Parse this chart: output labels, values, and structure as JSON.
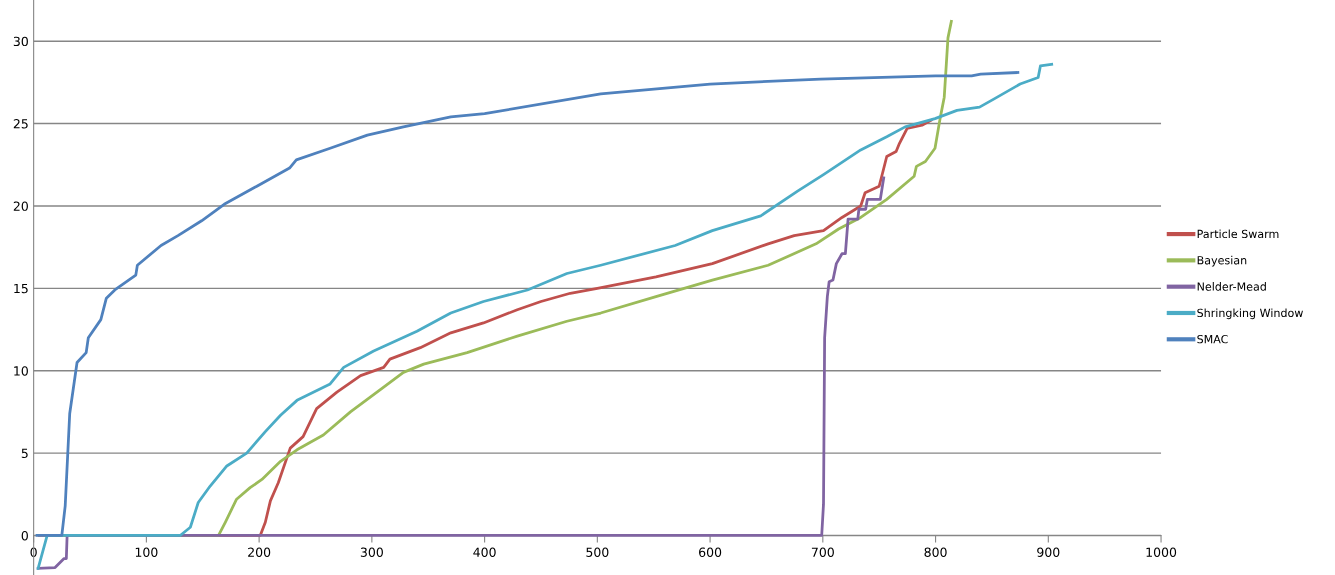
{
  "chart_data": {
    "type": "line",
    "xlim": [
      0,
      1000
    ],
    "xticks": [
      0,
      100,
      200,
      300,
      400,
      500,
      600,
      700,
      800,
      900,
      1000
    ],
    "ylim": [
      -2.4,
      32.5
    ],
    "yticks": [
      0,
      5,
      10,
      15,
      20,
      25,
      30
    ],
    "grid": "y",
    "legend": "right",
    "marker": "none",
    "line_style": "solid",
    "series": [
      {
        "name": "Particle Swarm",
        "color": "#c0504d",
        "x": [
          5,
          201,
          205.5,
          210,
          217,
          227.6,
          239,
          251,
          269,
          290,
          310.5,
          316,
          343,
          370,
          399,
          429,
          450,
          476,
          500,
          552,
          602,
          651.5,
          674.6,
          700.6,
          717,
          733.6,
          737.5,
          750,
          753,
          756.7,
          765,
          768,
          774.7,
          788,
          796
        ],
        "values": [
          0,
          0,
          0.8,
          2.1,
          3.2,
          5.3,
          6.0,
          7.7,
          8.7,
          9.7,
          10.2,
          10.7,
          11.4,
          12.3,
          12.9,
          13.7,
          14.2,
          14.7,
          15.0,
          15.7,
          16.5,
          17.7,
          18.2,
          18.5,
          19.3,
          20.0,
          20.8,
          21.2,
          22.0,
          23.0,
          23.3,
          23.8,
          24.7,
          24.9,
          25.2
        ]
      },
      {
        "name": "Bayesian",
        "color": "#9bbb59",
        "x": [
          10,
          164,
          170,
          180,
          192,
          202.5,
          219,
          233.6,
          257,
          281,
          310.5,
          328,
          346,
          384.5,
          429,
          473,
          503,
          552,
          602,
          651.5,
          694,
          714,
          733.6,
          756.7,
          781,
          783,
          791,
          799.5,
          804,
          807.7,
          811,
          814
        ],
        "values": [
          0,
          0,
          0.8,
          2.2,
          2.9,
          3.4,
          4.5,
          5.2,
          6.1,
          7.5,
          9.0,
          9.9,
          10.4,
          11.1,
          12.1,
          13.0,
          13.5,
          14.5,
          15.5,
          16.4,
          17.7,
          18.6,
          19.3,
          20.4,
          21.8,
          22.4,
          22.7,
          23.5,
          25.3,
          26.6,
          30.2,
          31.2
        ]
      },
      {
        "name": "Nelder-Mead",
        "color": "#8064a2",
        "x": [
          4,
          19,
          27,
          29,
          29.7,
          699,
          700.6,
          701.6,
          704,
          705.6,
          709,
          712,
          717,
          720,
          722.4,
          731,
          732,
          738,
          739.5,
          751,
          754
        ],
        "values": [
          -2.0,
          -1.95,
          -1.4,
          -1.4,
          0,
          0,
          1.9,
          12.0,
          14.5,
          15.4,
          15.5,
          16.5,
          17.1,
          17.1,
          19.2,
          19.2,
          19.8,
          19.8,
          20.4,
          20.4,
          21.7
        ]
      },
      {
        "name": "Shringking Window",
        "color": "#4bacc6",
        "x": [
          4,
          12,
          130,
          139,
          146,
          156.6,
          171,
          189,
          205.5,
          219,
          233.6,
          263,
          275,
          301.6,
          340,
          370,
          399,
          438,
          473,
          503,
          569,
          602,
          645,
          677.6,
          700.6,
          733.6,
          756.7,
          773,
          799.5,
          819,
          839,
          852,
          875,
          891,
          893,
          903
        ],
        "values": [
          -2.0,
          0,
          0,
          0.5,
          2.0,
          3.0,
          4.2,
          5.0,
          6.3,
          7.3,
          8.2,
          9.2,
          10.2,
          11.2,
          12.4,
          13.5,
          14.2,
          14.9,
          15.9,
          16.4,
          17.6,
          18.5,
          19.4,
          20.9,
          21.9,
          23.4,
          24.2,
          24.8,
          25.3,
          25.8,
          26.0,
          26.5,
          27.4,
          27.8,
          28.5,
          28.6
        ]
      },
      {
        "name": "SMAC",
        "color": "#4f81bd",
        "x": [
          3,
          25,
          28,
          32,
          38.5,
          46.6,
          48.5,
          59.6,
          64.5,
          72,
          90.6,
          92,
          113,
          128,
          149,
          169,
          198,
          227,
          233,
          263,
          296,
          328,
          370,
          400,
          503,
          600,
          698,
          800,
          832,
          840,
          873
        ],
        "values": [
          0,
          0,
          1.8,
          7.4,
          10.5,
          11.1,
          12.0,
          13.1,
          14.4,
          14.9,
          15.8,
          16.4,
          17.6,
          18.2,
          19.1,
          20.1,
          21.2,
          22.3,
          22.8,
          23.5,
          24.3,
          24.8,
          25.4,
          25.6,
          26.8,
          27.4,
          27.7,
          27.9,
          27.9,
          28.0,
          28.1
        ]
      }
    ]
  }
}
